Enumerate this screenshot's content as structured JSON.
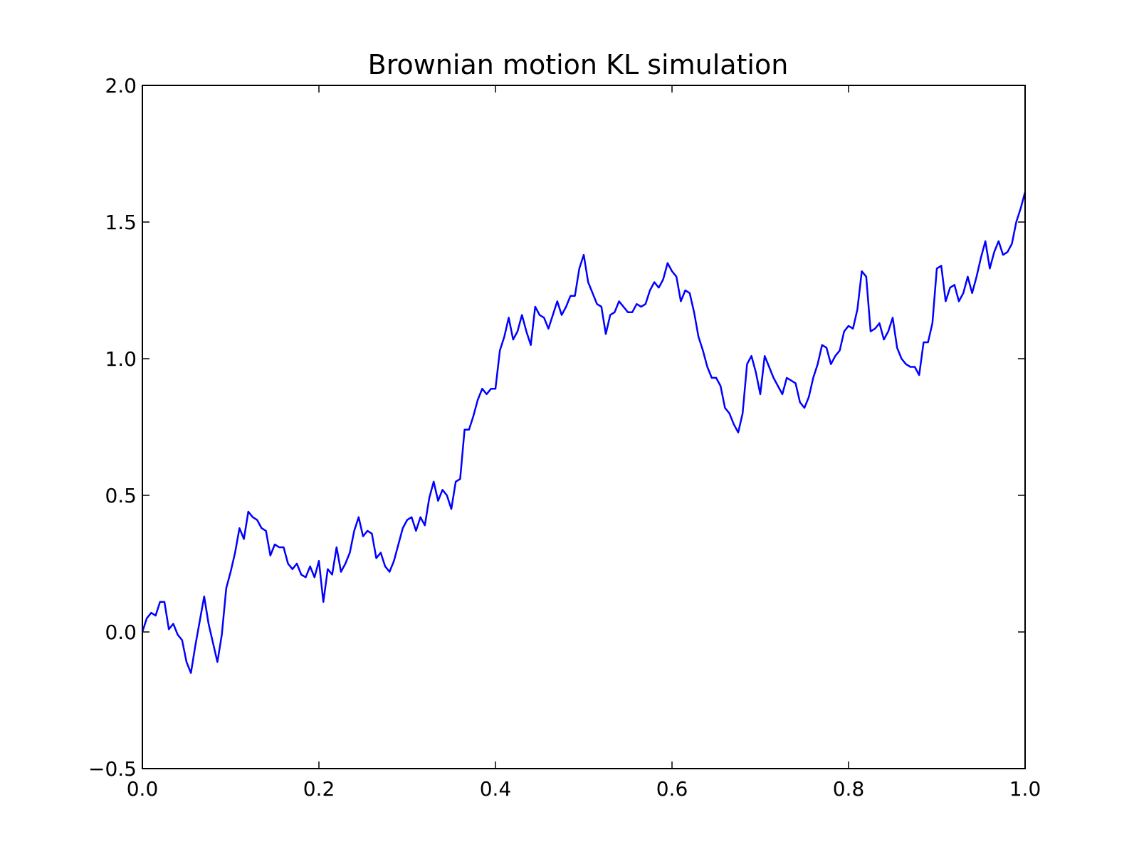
{
  "chart_data": {
    "type": "line",
    "title": "Brownian motion KL simulation",
    "xlabel": "",
    "ylabel": "",
    "xlim": [
      0.0,
      1.0
    ],
    "ylim": [
      -0.5,
      2.0
    ],
    "x_ticks": [
      "0.0",
      "0.2",
      "0.4",
      "0.6",
      "0.8",
      "1.0"
    ],
    "y_ticks": [
      "−0.5",
      "0.0",
      "0.5",
      "1.0",
      "1.5",
      "2.0"
    ],
    "grid": false,
    "line_color": "#0000ff",
    "series": [
      {
        "points": [
          [
            0.0,
            0.0
          ],
          [
            0.005,
            0.05
          ],
          [
            0.01,
            0.07
          ],
          [
            0.015,
            0.06
          ],
          [
            0.02,
            0.11
          ],
          [
            0.025,
            0.11
          ],
          [
            0.03,
            0.01
          ],
          [
            0.035,
            0.03
          ],
          [
            0.04,
            -0.01
          ],
          [
            0.045,
            -0.03
          ],
          [
            0.05,
            -0.11
          ],
          [
            0.055,
            -0.15
          ],
          [
            0.06,
            -0.05
          ],
          [
            0.065,
            0.04
          ],
          [
            0.07,
            0.13
          ],
          [
            0.075,
            0.03
          ],
          [
            0.08,
            -0.04
          ],
          [
            0.085,
            -0.11
          ],
          [
            0.09,
            -0.01
          ],
          [
            0.095,
            0.16
          ],
          [
            0.1,
            0.22
          ],
          [
            0.105,
            0.29
          ],
          [
            0.11,
            0.38
          ],
          [
            0.115,
            0.34
          ],
          [
            0.12,
            0.44
          ],
          [
            0.125,
            0.42
          ],
          [
            0.13,
            0.41
          ],
          [
            0.135,
            0.38
          ],
          [
            0.14,
            0.37
          ],
          [
            0.145,
            0.28
          ],
          [
            0.15,
            0.32
          ],
          [
            0.155,
            0.31
          ],
          [
            0.16,
            0.31
          ],
          [
            0.165,
            0.25
          ],
          [
            0.17,
            0.23
          ],
          [
            0.175,
            0.25
          ],
          [
            0.18,
            0.21
          ],
          [
            0.185,
            0.2
          ],
          [
            0.19,
            0.24
          ],
          [
            0.195,
            0.2
          ],
          [
            0.2,
            0.26
          ],
          [
            0.205,
            0.11
          ],
          [
            0.21,
            0.23
          ],
          [
            0.215,
            0.21
          ],
          [
            0.22,
            0.31
          ],
          [
            0.225,
            0.22
          ],
          [
            0.23,
            0.25
          ],
          [
            0.235,
            0.29
          ],
          [
            0.24,
            0.37
          ],
          [
            0.245,
            0.42
          ],
          [
            0.25,
            0.35
          ],
          [
            0.255,
            0.37
          ],
          [
            0.26,
            0.36
          ],
          [
            0.265,
            0.27
          ],
          [
            0.27,
            0.29
          ],
          [
            0.275,
            0.24
          ],
          [
            0.28,
            0.22
          ],
          [
            0.285,
            0.26
          ],
          [
            0.29,
            0.32
          ],
          [
            0.295,
            0.38
          ],
          [
            0.3,
            0.41
          ],
          [
            0.305,
            0.42
          ],
          [
            0.31,
            0.37
          ],
          [
            0.315,
            0.42
          ],
          [
            0.32,
            0.39
          ],
          [
            0.325,
            0.49
          ],
          [
            0.33,
            0.55
          ],
          [
            0.335,
            0.48
          ],
          [
            0.34,
            0.52
          ],
          [
            0.345,
            0.5
          ],
          [
            0.35,
            0.45
          ],
          [
            0.355,
            0.55
          ],
          [
            0.36,
            0.56
          ],
          [
            0.365,
            0.74
          ],
          [
            0.37,
            0.74
          ],
          [
            0.375,
            0.79
          ],
          [
            0.38,
            0.85
          ],
          [
            0.385,
            0.89
          ],
          [
            0.39,
            0.87
          ],
          [
            0.395,
            0.89
          ],
          [
            0.4,
            0.89
          ],
          [
            0.405,
            1.03
          ],
          [
            0.41,
            1.08
          ],
          [
            0.415,
            1.15
          ],
          [
            0.42,
            1.07
          ],
          [
            0.425,
            1.1
          ],
          [
            0.43,
            1.16
          ],
          [
            0.435,
            1.1
          ],
          [
            0.44,
            1.05
          ],
          [
            0.445,
            1.19
          ],
          [
            0.45,
            1.16
          ],
          [
            0.455,
            1.15
          ],
          [
            0.46,
            1.11
          ],
          [
            0.465,
            1.16
          ],
          [
            0.47,
            1.21
          ],
          [
            0.475,
            1.16
          ],
          [
            0.48,
            1.19
          ],
          [
            0.485,
            1.23
          ],
          [
            0.49,
            1.23
          ],
          [
            0.495,
            1.33
          ],
          [
            0.5,
            1.38
          ],
          [
            0.505,
            1.28
          ],
          [
            0.51,
            1.24
          ],
          [
            0.515,
            1.2
          ],
          [
            0.52,
            1.19
          ],
          [
            0.525,
            1.09
          ],
          [
            0.53,
            1.16
          ],
          [
            0.535,
            1.17
          ],
          [
            0.54,
            1.21
          ],
          [
            0.545,
            1.19
          ],
          [
            0.55,
            1.17
          ],
          [
            0.555,
            1.17
          ],
          [
            0.56,
            1.2
          ],
          [
            0.565,
            1.19
          ],
          [
            0.57,
            1.2
          ],
          [
            0.575,
            1.25
          ],
          [
            0.58,
            1.28
          ],
          [
            0.585,
            1.26
          ],
          [
            0.59,
            1.29
          ],
          [
            0.595,
            1.35
          ],
          [
            0.6,
            1.32
          ],
          [
            0.605,
            1.3
          ],
          [
            0.61,
            1.21
          ],
          [
            0.615,
            1.25
          ],
          [
            0.62,
            1.24
          ],
          [
            0.625,
            1.17
          ],
          [
            0.63,
            1.08
          ],
          [
            0.635,
            1.03
          ],
          [
            0.64,
            0.97
          ],
          [
            0.645,
            0.93
          ],
          [
            0.65,
            0.93
          ],
          [
            0.655,
            0.9
          ],
          [
            0.66,
            0.82
          ],
          [
            0.665,
            0.8
          ],
          [
            0.67,
            0.76
          ],
          [
            0.675,
            0.73
          ],
          [
            0.68,
            0.8
          ],
          [
            0.685,
            0.98
          ],
          [
            0.69,
            1.01
          ],
          [
            0.695,
            0.95
          ],
          [
            0.7,
            0.87
          ],
          [
            0.705,
            1.01
          ],
          [
            0.71,
            0.97
          ],
          [
            0.715,
            0.93
          ],
          [
            0.72,
            0.9
          ],
          [
            0.725,
            0.87
          ],
          [
            0.73,
            0.93
          ],
          [
            0.735,
            0.92
          ],
          [
            0.74,
            0.91
          ],
          [
            0.745,
            0.84
          ],
          [
            0.75,
            0.82
          ],
          [
            0.755,
            0.86
          ],
          [
            0.76,
            0.93
          ],
          [
            0.765,
            0.98
          ],
          [
            0.77,
            1.05
          ],
          [
            0.775,
            1.04
          ],
          [
            0.78,
            0.98
          ],
          [
            0.785,
            1.01
          ],
          [
            0.79,
            1.03
          ],
          [
            0.795,
            1.1
          ],
          [
            0.8,
            1.12
          ],
          [
            0.805,
            1.11
          ],
          [
            0.81,
            1.18
          ],
          [
            0.815,
            1.32
          ],
          [
            0.82,
            1.3
          ],
          [
            0.825,
            1.1
          ],
          [
            0.83,
            1.11
          ],
          [
            0.835,
            1.13
          ],
          [
            0.84,
            1.07
          ],
          [
            0.845,
            1.1
          ],
          [
            0.85,
            1.15
          ],
          [
            0.855,
            1.04
          ],
          [
            0.86,
            1.0
          ],
          [
            0.865,
            0.98
          ],
          [
            0.87,
            0.97
          ],
          [
            0.875,
            0.97
          ],
          [
            0.88,
            0.94
          ],
          [
            0.885,
            1.06
          ],
          [
            0.89,
            1.06
          ],
          [
            0.895,
            1.13
          ],
          [
            0.9,
            1.33
          ],
          [
            0.905,
            1.34
          ],
          [
            0.91,
            1.21
          ],
          [
            0.915,
            1.26
          ],
          [
            0.92,
            1.27
          ],
          [
            0.925,
            1.21
          ],
          [
            0.93,
            1.24
          ],
          [
            0.935,
            1.3
          ],
          [
            0.94,
            1.24
          ],
          [
            0.945,
            1.3
          ],
          [
            0.95,
            1.37
          ],
          [
            0.955,
            1.43
          ],
          [
            0.96,
            1.33
          ],
          [
            0.965,
            1.39
          ],
          [
            0.97,
            1.43
          ],
          [
            0.975,
            1.38
          ],
          [
            0.98,
            1.39
          ],
          [
            0.985,
            1.42
          ],
          [
            0.99,
            1.5
          ],
          [
            0.995,
            1.55
          ],
          [
            1.0,
            1.61
          ]
        ]
      }
    ]
  }
}
